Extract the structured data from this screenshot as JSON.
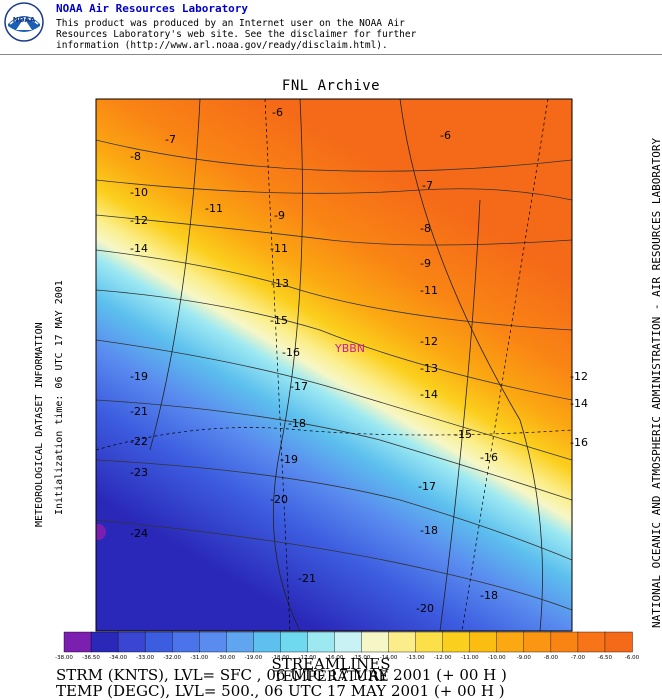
{
  "header": {
    "org_title": "NOAA Air Resources Laboratory",
    "logo_text": "NOAA",
    "disclaimer_lines": [
      "This product was produced by an Internet user on the NOAA Air",
      "Resources Laboratory's web site.  See the disclaimer for further",
      "information (http://www.arl.noaa.gov/ready/disclaim.html)."
    ]
  },
  "map": {
    "title": "FNL Archive",
    "station_label": "YBBN",
    "contour_labels": [
      "-6",
      "-6",
      "-7",
      "-7",
      "-8",
      "-8",
      "-9",
      "-9",
      "-10",
      "-11",
      "-11",
      "-11",
      "-12",
      "-12",
      "-12",
      "-13",
      "-13",
      "-14",
      "-14",
      "-14",
      "-15",
      "-15",
      "-16",
      "-16",
      "-16",
      "-17",
      "-17",
      "-18",
      "-18",
      "-19",
      "-19",
      "-20",
      "-20",
      "-21",
      "-21",
      "-22",
      "-23",
      "-24",
      "-18"
    ],
    "color_scale": {
      "labels": [
        "-38.00",
        "-36.50",
        "-34.00",
        "-33.00",
        "-32.00",
        "-31.00",
        "-30.00",
        "-19.00",
        "-18.00",
        "-17.00",
        "-16.00",
        "-15.00",
        "-14.00",
        "-13.00",
        "-12.00",
        "-11.00",
        "-10.00",
        "-9.00",
        "-8.00",
        "-7.00",
        "-6.50",
        "-6.00"
      ],
      "colors": [
        "#7a1fb0",
        "#2a28b8",
        "#3a46d2",
        "#3d5de0",
        "#4b74ea",
        "#5a8cef",
        "#5fa5ef",
        "#5dc0ee",
        "#6fd9f0",
        "#9de9f2",
        "#c8f2f4",
        "#f6f7c6",
        "#fbee8a",
        "#fbe04a",
        "#fbcf1d",
        "#fbbd12",
        "#fba812",
        "#fb9612",
        "#f98414",
        "#f77418",
        "#f56a18"
      ]
    }
  },
  "side_labels": {
    "left_main": "METEOROLOGICAL DATASET INFORMATION",
    "left_sub": "Initialization time: 06 UTC 17 MAY 2001",
    "right": "NATIONAL OCEANIC AND ATMOSPHERIC ADMINISTRATION - AIR RESOURCES LABORATORY"
  },
  "footer": {
    "line1": "STREAMLINES",
    "line2": "TEMPERATURE",
    "line3": "STRM (KNTS),  LVL= SFC , 06 UTC 17 MAY 2001 (+ 00 H )",
    "line4": "TEMP (DEGC),  LVL= 500., 06 UTC 17 MAY 2001 (+ 00 H )"
  }
}
